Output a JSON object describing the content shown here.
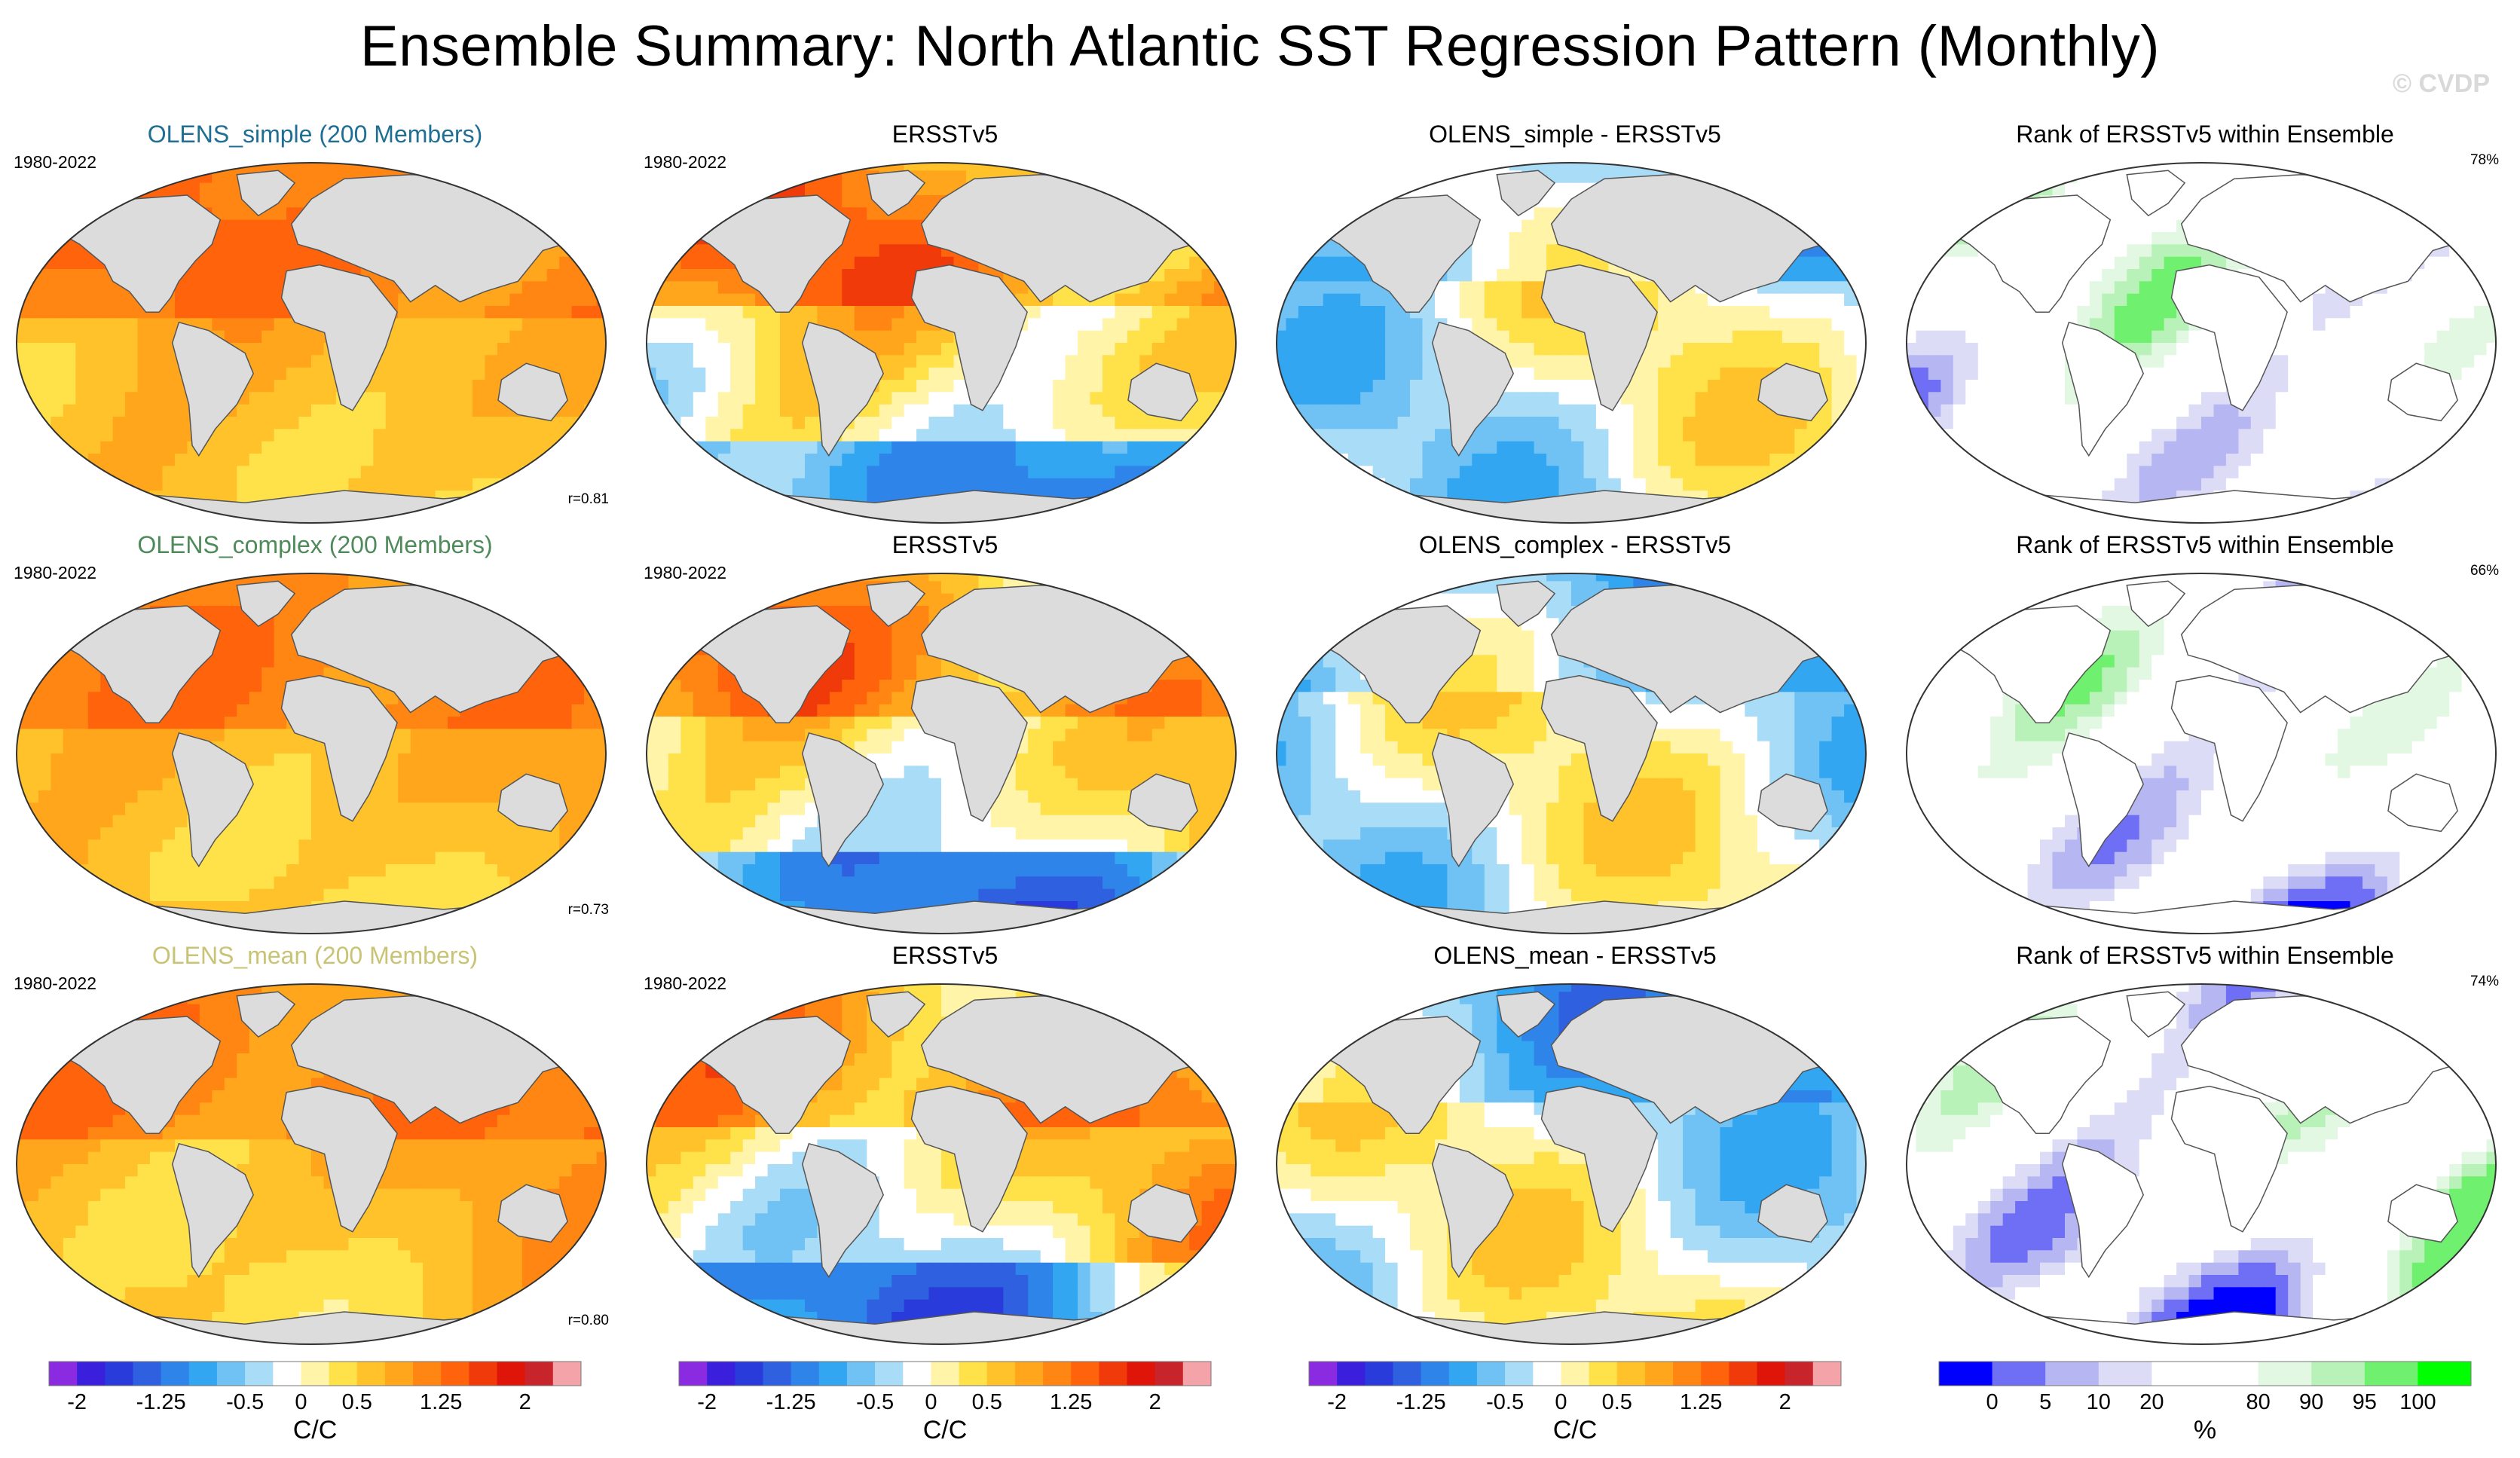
{
  "title": "Ensemble Summary: North Atlantic SST Regression Pattern (Monthly)",
  "watermark": "© CVDP",
  "colors": {
    "land": "#dcdcdc",
    "coast": "#555555",
    "ensemble_title_colors": [
      "#1f6e94",
      "#4f8a5a",
      "#c9c475"
    ]
  },
  "rows": [
    {
      "ensemble": {
        "title": "OLENS_simple (200 Members)",
        "period": "1980-2022",
        "r": "r=0.81"
      },
      "obs": {
        "title": "ERSSTv5",
        "period": "1980-2022"
      },
      "diff": {
        "title": "OLENS_simple - ERSSTv5"
      },
      "rank": {
        "title": "Rank of ERSSTv5 within Ensemble",
        "pct": "78%"
      }
    },
    {
      "ensemble": {
        "title": "OLENS_complex (200 Members)",
        "period": "1980-2022",
        "r": "r=0.73"
      },
      "obs": {
        "title": "ERSSTv5",
        "period": "1980-2022"
      },
      "diff": {
        "title": "OLENS_complex - ERSSTv5"
      },
      "rank": {
        "title": "Rank of ERSSTv5 within Ensemble",
        "pct": "66%"
      }
    },
    {
      "ensemble": {
        "title": "OLENS_mean (200 Members)",
        "period": "1980-2022",
        "r": "r=0.80"
      },
      "obs": {
        "title": "ERSSTv5",
        "period": "1980-2022"
      },
      "diff": {
        "title": "OLENS_mean - ERSSTv5"
      },
      "rank": {
        "title": "Rank of ERSSTv5 within Ensemble",
        "pct": "74%"
      }
    }
  ],
  "colorbars": {
    "regression": {
      "units": "C/C",
      "colors": [
        "#8a2be2",
        "#3a1fdc",
        "#2a3bdc",
        "#2f60e0",
        "#2f84ea",
        "#33a6f2",
        "#6fc2f3",
        "#a9dcf6",
        "#ffffff",
        "#fff4a8",
        "#ffe14a",
        "#ffc22a",
        "#ffa61c",
        "#ff8613",
        "#ff640d",
        "#f03a0a",
        "#e0150a",
        "#c8242c",
        "#f4a4a8"
      ],
      "ticks": [
        "-2",
        "-1.25",
        "-0.5",
        "0",
        "0.5",
        "1.25",
        "2"
      ],
      "tick_boundaries": [
        1,
        4,
        7,
        9,
        11,
        14,
        17
      ]
    },
    "rank": {
      "units": "%",
      "colors": [
        "#0000ff",
        "#6f6ff5",
        "#b6b6f3",
        "#dcdcf7",
        "#ffffff",
        "#ffffff",
        "#e2f8e2",
        "#b8f2b8",
        "#6ff06f",
        "#00ff00"
      ],
      "ticks": [
        "0",
        "5",
        "10",
        "20",
        "80",
        "90",
        "95",
        "100"
      ],
      "tick_boundaries": [
        1,
        2,
        3,
        4,
        6,
        7,
        8,
        9
      ]
    }
  }
}
